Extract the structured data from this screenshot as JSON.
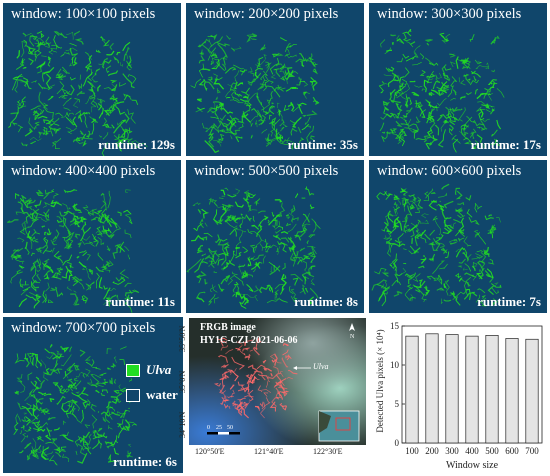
{
  "panels": [
    {
      "window": "window: 100×100 pixels",
      "runtime": "runtime: 129s"
    },
    {
      "window": "window: 200×200 pixels",
      "runtime": "runtime: 35s"
    },
    {
      "window": "window: 300×300 pixels",
      "runtime": "runtime: 17s"
    },
    {
      "window": "window: 400×400 pixels",
      "runtime": "runtime: 11s"
    },
    {
      "window": "window: 500×500 pixels",
      "runtime": "runtime: 8s"
    },
    {
      "window": "window: 600×600 pixels",
      "runtime": "runtime: 7s"
    },
    {
      "window": "window: 700×700 pixels",
      "runtime": "runtime: 6s"
    }
  ],
  "legend": {
    "ulva": "Ulva",
    "water": "water",
    "ulva_color": "#22dd22",
    "water_color": "#10466b"
  },
  "rgb_image": {
    "title_line1": "FRGB image",
    "title_line2": "HY1C-CZI  2021-06-06",
    "annotation": "Ulva",
    "lat_labels": [
      "35°50'N",
      "35°0'N",
      "34°10'N"
    ],
    "lon_labels": [
      "120°50'E",
      "121°40'E",
      "122°30'E"
    ],
    "scale_labels": [
      "0",
      "25",
      "50"
    ],
    "north": "N"
  },
  "chart_data": {
    "type": "bar",
    "categories": [
      "100",
      "200",
      "300",
      "400",
      "500",
      "600",
      "700"
    ],
    "values": [
      13.7,
      14.0,
      13.9,
      13.7,
      13.8,
      13.4,
      13.3
    ],
    "xlabel": "Window size",
    "ylabel": "Detected Ulva pixels (× 10⁴)",
    "ylim": [
      0,
      15
    ],
    "yticks": [
      "0",
      "5",
      "10",
      "15"
    ],
    "bar_color": "#e4e4e4",
    "grid": false
  }
}
